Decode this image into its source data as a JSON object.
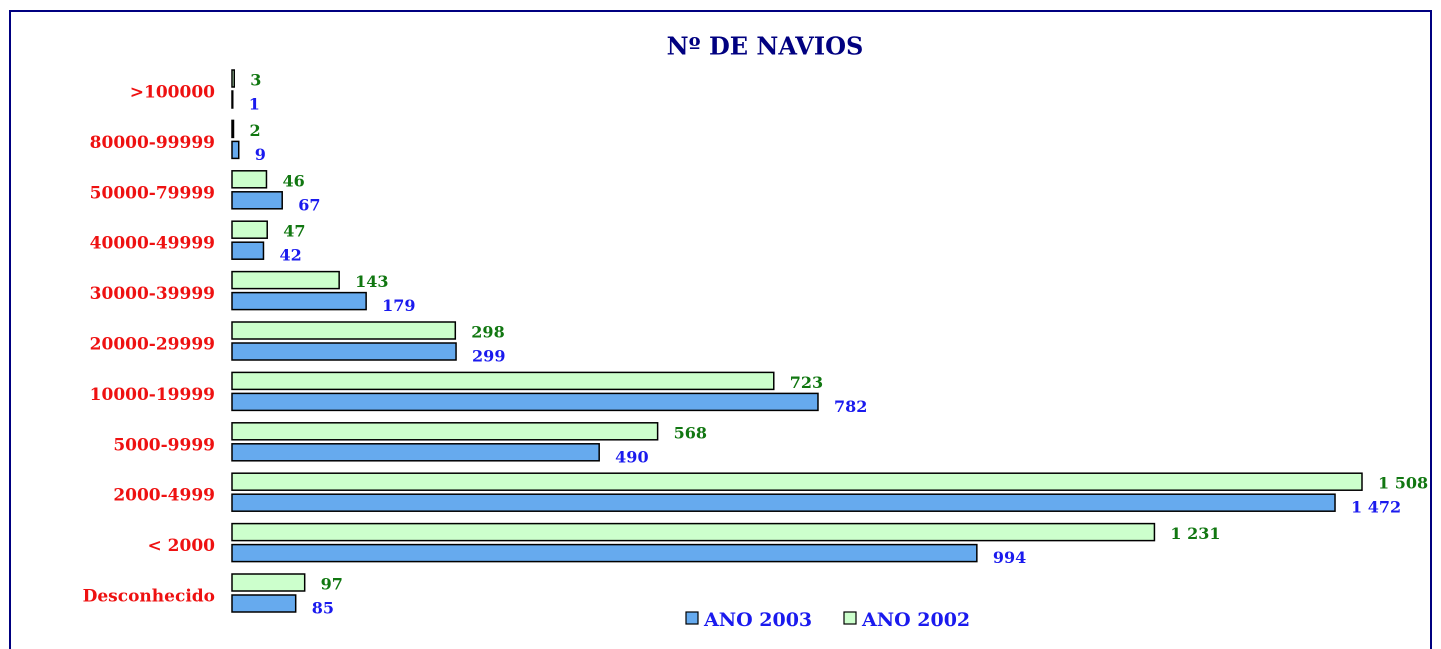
{
  "chart_data": {
    "type": "hbar",
    "title": "Nº DE NAVIOS",
    "categories": [
      ">100000",
      "80000-99999",
      "50000-79999",
      "40000-49999",
      "30000-39999",
      "20000-29999",
      "10000-19999",
      "5000-9999",
      "2000-4999",
      "< 2000",
      "Desconhecido"
    ],
    "series": [
      {
        "name": "ANO 2003",
        "color": "#66aaee",
        "label_color": "#1a1aee",
        "values": [
          1,
          9,
          67,
          42,
          179,
          299,
          782,
          490,
          1472,
          994,
          85
        ],
        "value_labels": [
          "1",
          "9",
          "67",
          "42",
          "179",
          "299",
          "782",
          "490",
          "1 472",
          "994",
          "85"
        ]
      },
      {
        "name": "ANO 2002",
        "color": "#ccffcc",
        "label_color": "#117711",
        "values": [
          3,
          2,
          46,
          47,
          143,
          298,
          723,
          568,
          1508,
          1231,
          97
        ],
        "value_labels": [
          "3",
          "2",
          "46",
          "47",
          "143",
          "298",
          "723",
          "568",
          "1 508",
          "1 231",
          "97"
        ]
      }
    ],
    "xlim": [
      0,
      1508
    ],
    "category_color": "#ee1111",
    "title_color": "#000080"
  }
}
